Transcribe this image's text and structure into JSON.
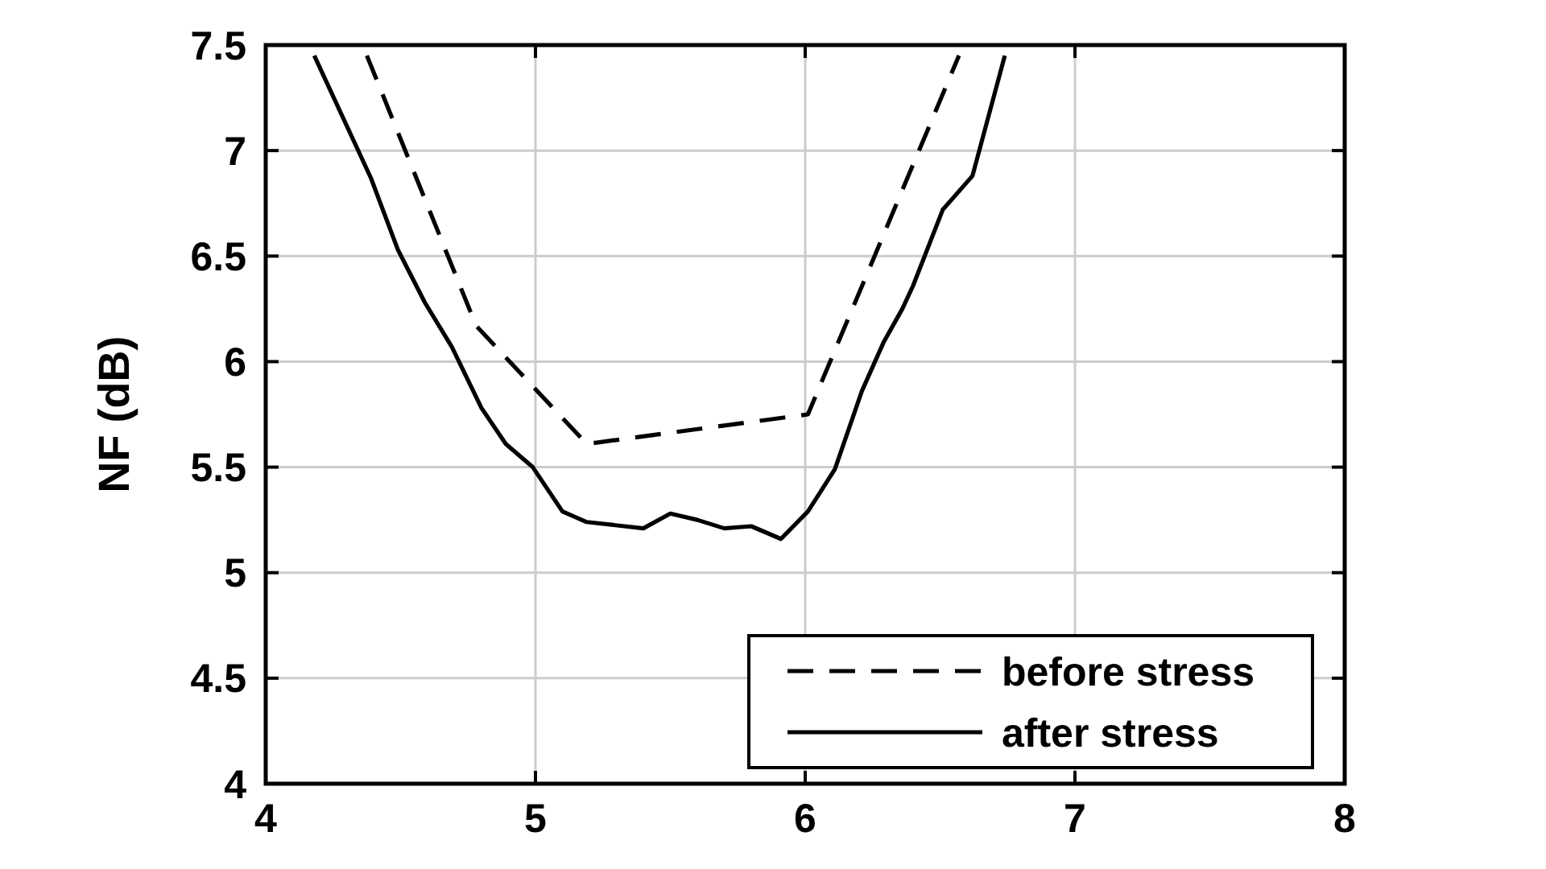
{
  "chart_data": {
    "type": "line",
    "ylabel": "NF (dB)",
    "xlim": [
      4,
      8
    ],
    "xticks": [
      4,
      5,
      6,
      7,
      8
    ],
    "ylim": [
      4,
      7.5
    ],
    "yticks": [
      4,
      4.5,
      5,
      5.5,
      6,
      6.5,
      7,
      7.5
    ],
    "grid": true,
    "legend": "bottom right",
    "series": [
      {
        "name": "before stress",
        "color": "#000000",
        "line_style": "dashed",
        "x": [
          4.375,
          4.78,
          5.19,
          6.01,
          6.57
        ],
        "values": [
          7.45,
          6.17,
          5.61,
          5.75,
          7.45
        ]
      },
      {
        "name": "after stress",
        "color": "#000000",
        "line_style": "solid",
        "x": [
          4.18,
          4.39,
          4.49,
          4.59,
          4.69,
          4.8,
          4.89,
          4.99,
          5.1,
          5.19,
          5.4,
          5.5,
          5.6,
          5.7,
          5.8,
          5.91,
          6.01,
          6.11,
          6.21,
          6.29,
          6.36,
          6.4,
          6.51,
          6.62,
          6.74
        ],
        "values": [
          7.45,
          6.87,
          6.53,
          6.28,
          6.07,
          5.78,
          5.61,
          5.5,
          5.29,
          5.24,
          5.21,
          5.28,
          5.25,
          5.21,
          5.22,
          5.16,
          5.29,
          5.49,
          5.86,
          6.09,
          6.25,
          6.36,
          6.72,
          6.88,
          7.45
        ]
      }
    ]
  }
}
